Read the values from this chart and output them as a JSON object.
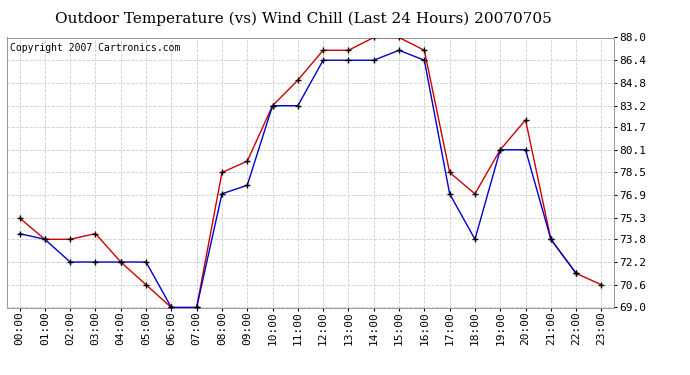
{
  "title": "Outdoor Temperature (vs) Wind Chill (Last 24 Hours) 20070705",
  "copyright_text": "Copyright 2007 Cartronics.com",
  "x_labels": [
    "00:00",
    "01:00",
    "02:00",
    "03:00",
    "04:00",
    "05:00",
    "06:00",
    "07:00",
    "08:00",
    "09:00",
    "10:00",
    "11:00",
    "12:00",
    "13:00",
    "14:00",
    "15:00",
    "16:00",
    "17:00",
    "18:00",
    "19:00",
    "20:00",
    "21:00",
    "22:00",
    "23:00"
  ],
  "temp_red": [
    75.3,
    73.8,
    73.8,
    74.2,
    72.2,
    70.6,
    69.0,
    69.0,
    78.5,
    79.3,
    83.2,
    85.0,
    87.1,
    87.1,
    88.0,
    88.0,
    87.1,
    78.5,
    77.0,
    80.1,
    82.2,
    73.8,
    71.4,
    70.6
  ],
  "wind_blue": [
    74.2,
    73.8,
    72.2,
    72.2,
    72.2,
    72.2,
    69.0,
    69.0,
    77.0,
    77.6,
    83.2,
    83.2,
    86.4,
    86.4,
    86.4,
    87.1,
    86.4,
    77.0,
    73.8,
    80.1,
    80.1,
    73.8,
    71.4,
    null
  ],
  "ylim_min": 69.0,
  "ylim_max": 88.0,
  "yticks": [
    69.0,
    70.6,
    72.2,
    73.8,
    75.3,
    76.9,
    78.5,
    80.1,
    81.7,
    83.2,
    84.8,
    86.4,
    88.0
  ],
  "red_color": "#cc0000",
  "blue_color": "#0000cc",
  "grid_color": "#cccccc",
  "bg_color": "#ffffff",
  "plot_bg_color": "#ffffff",
  "title_fontsize": 11,
  "tick_fontsize": 8,
  "copyright_fontsize": 7
}
